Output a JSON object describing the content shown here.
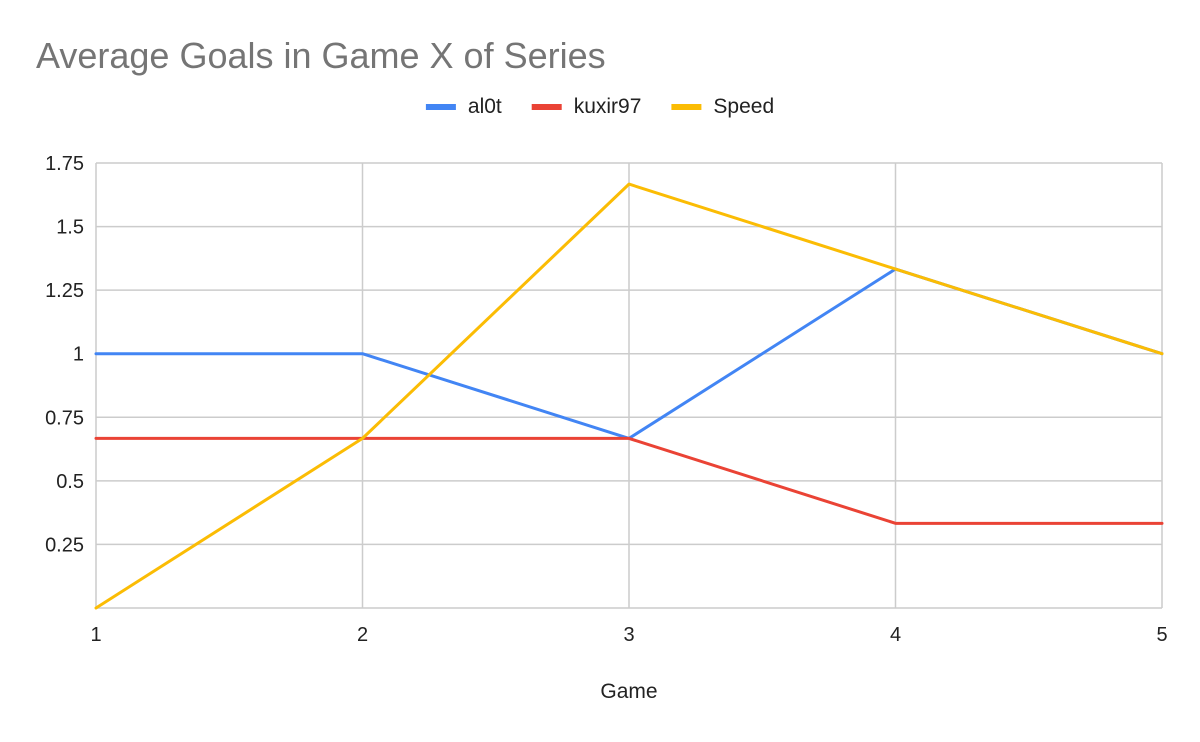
{
  "chart_data": {
    "type": "line",
    "title": "Average Goals in Game X of Series",
    "xlabel": "Game",
    "ylabel": "",
    "categories": [
      "1",
      "2",
      "3",
      "4",
      "5"
    ],
    "xlim": [
      1,
      5
    ],
    "ylim": [
      0,
      1.75
    ],
    "yticks": [
      0.25,
      0.5,
      0.75,
      1,
      1.25,
      1.5,
      1.75
    ],
    "ytick_labels": [
      "0.25",
      "0.5",
      "0.75",
      "1",
      "1.25",
      "1.5",
      "1.75"
    ],
    "grid": true,
    "legend_position": "top",
    "series": [
      {
        "name": "al0t",
        "color": "#4285f4",
        "values": [
          1,
          1,
          0.667,
          1.333,
          1
        ]
      },
      {
        "name": "kuxir97",
        "color": "#ea4335",
        "values": [
          0.667,
          0.667,
          0.667,
          0.333,
          0.333
        ]
      },
      {
        "name": "Speed",
        "color": "#fbbc04",
        "values": [
          0,
          0.667,
          1.667,
          1.333,
          1
        ]
      }
    ]
  }
}
